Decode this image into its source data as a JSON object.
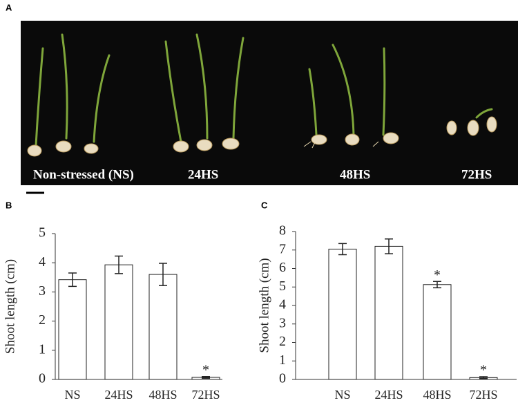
{
  "photo": {
    "label": "A",
    "captions": [
      "Non-stressed (NS)",
      "24HS",
      "48HS",
      "72HS"
    ]
  },
  "chart_data": [
    {
      "type": "bar",
      "panel_label": "B",
      "y_label": "Shoot length (cm)",
      "categories": [
        "NS",
        "24HS",
        "48HS",
        "72HS"
      ],
      "values": [
        3.42,
        3.93,
        3.6,
        0.07
      ],
      "errors": [
        0.23,
        0.3,
        0.38,
        0.03
      ],
      "color": "#ffffff",
      "ylim": [
        0,
        5
      ],
      "yticks": [
        0,
        1,
        2,
        3,
        4,
        5
      ],
      "annotations": [
        {
          "text": "*",
          "category": "72HS"
        }
      ]
    },
    {
      "type": "bar",
      "panel_label": "C",
      "y_label": "Shoot length (cm)",
      "categories": [
        "NS",
        "24HS",
        "48HS",
        "72HS"
      ],
      "values": [
        7.05,
        7.2,
        5.13,
        0.1
      ],
      "errors": [
        0.3,
        0.4,
        0.17,
        0.05
      ],
      "color": "#ffffff",
      "ylim": [
        0,
        8
      ],
      "yticks": [
        0,
        1,
        2,
        3,
        4,
        5,
        6,
        7,
        8
      ],
      "annotations": [
        {
          "text": "*",
          "category": "48HS"
        },
        {
          "text": "*",
          "category": "72HS"
        }
      ]
    }
  ]
}
